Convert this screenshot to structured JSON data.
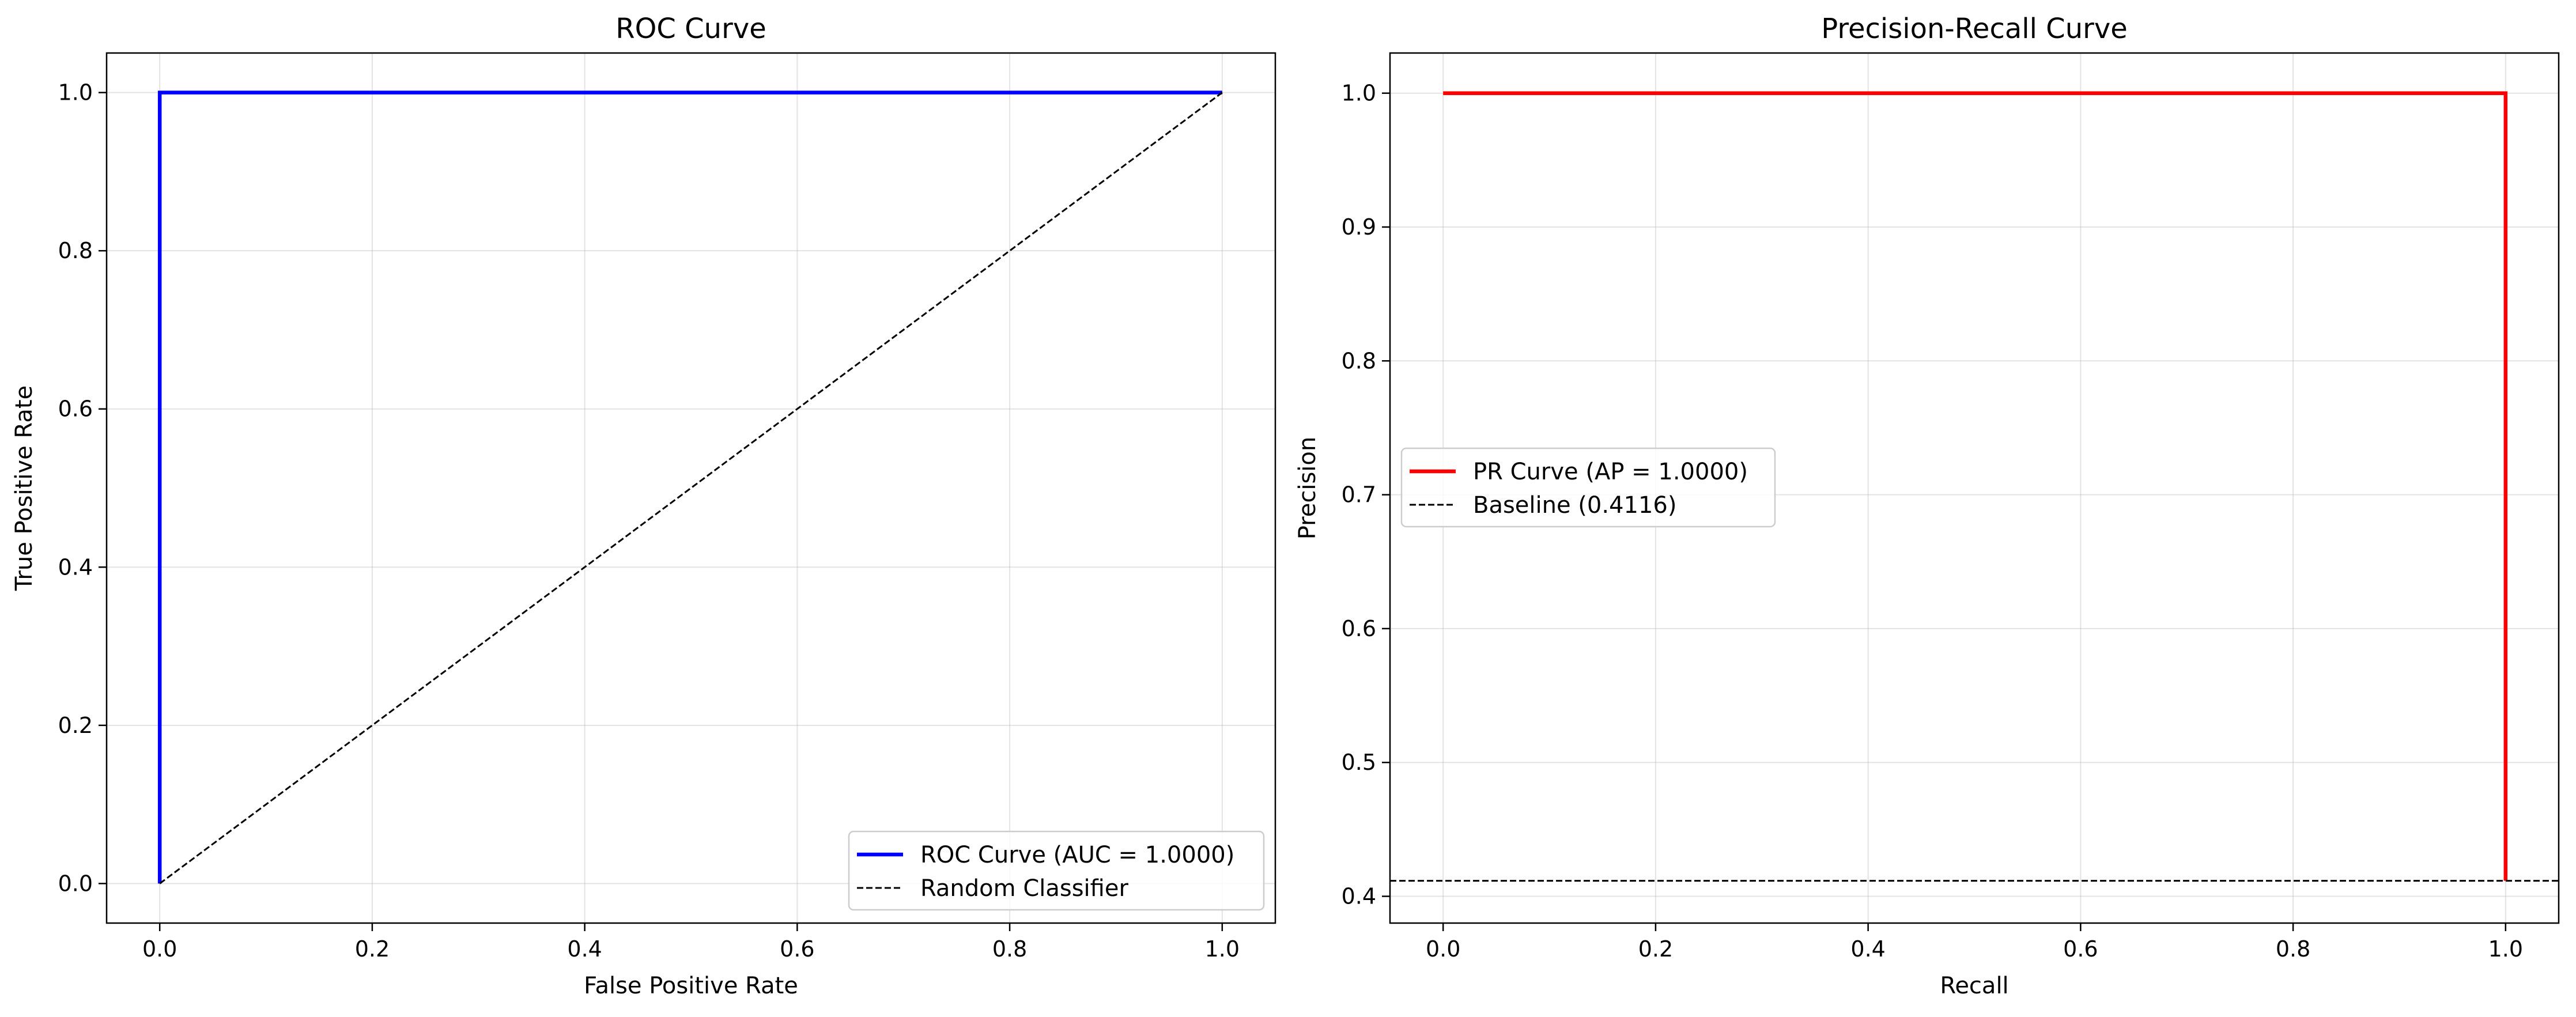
{
  "chart_data": [
    {
      "type": "line",
      "title": "ROC Curve",
      "xlabel": "False Positive Rate",
      "ylabel": "True Positive Rate",
      "xlim": [
        -0.05,
        1.05
      ],
      "ylim": [
        -0.05,
        1.05
      ],
      "xticks": [
        "0.0",
        "0.2",
        "0.4",
        "0.6",
        "0.8",
        "1.0"
      ],
      "yticks": [
        "0.0",
        "0.2",
        "0.4",
        "0.6",
        "0.8",
        "1.0"
      ],
      "xtick_values": [
        0,
        0.2,
        0.4,
        0.6,
        0.8,
        1.0
      ],
      "ytick_values": [
        0,
        0.2,
        0.4,
        0.6,
        0.8,
        1.0
      ],
      "grid": true,
      "legend_position": "lower right",
      "series": [
        {
          "name": "ROC Curve (AUC = 1.0000)",
          "color": "#0000ff",
          "style": "solid",
          "x": [
            0,
            0,
            1
          ],
          "y": [
            0,
            1,
            1
          ]
        },
        {
          "name": "Random Classifier",
          "color": "#000000",
          "style": "dashed",
          "x": [
            0,
            1
          ],
          "y": [
            0,
            1
          ]
        }
      ]
    },
    {
      "type": "line",
      "title": "Precision-Recall Curve",
      "xlabel": "Recall",
      "ylabel": "Precision",
      "xlim": [
        -0.05,
        1.05
      ],
      "ylim": [
        0.38,
        1.03
      ],
      "xticks": [
        "0.0",
        "0.2",
        "0.4",
        "0.6",
        "0.8",
        "1.0"
      ],
      "yticks": [
        "0.4",
        "0.5",
        "0.6",
        "0.7",
        "0.8",
        "0.9",
        "1.0"
      ],
      "xtick_values": [
        0,
        0.2,
        0.4,
        0.6,
        0.8,
        1.0
      ],
      "ytick_values": [
        0.4,
        0.5,
        0.6,
        0.7,
        0.8,
        0.9,
        1.0
      ],
      "grid": true,
      "legend_position": "center left",
      "series": [
        {
          "name": "PR Curve (AP = 1.0000)",
          "color": "#ff0000",
          "style": "solid",
          "x": [
            0,
            1,
            1
          ],
          "y": [
            1,
            1,
            0.4116
          ]
        },
        {
          "name": "Baseline (0.4116)",
          "color": "#000000",
          "style": "dashed",
          "x": [
            -0.05,
            1.05
          ],
          "y": [
            0.4116,
            0.4116
          ],
          "hline": true
        }
      ]
    }
  ]
}
